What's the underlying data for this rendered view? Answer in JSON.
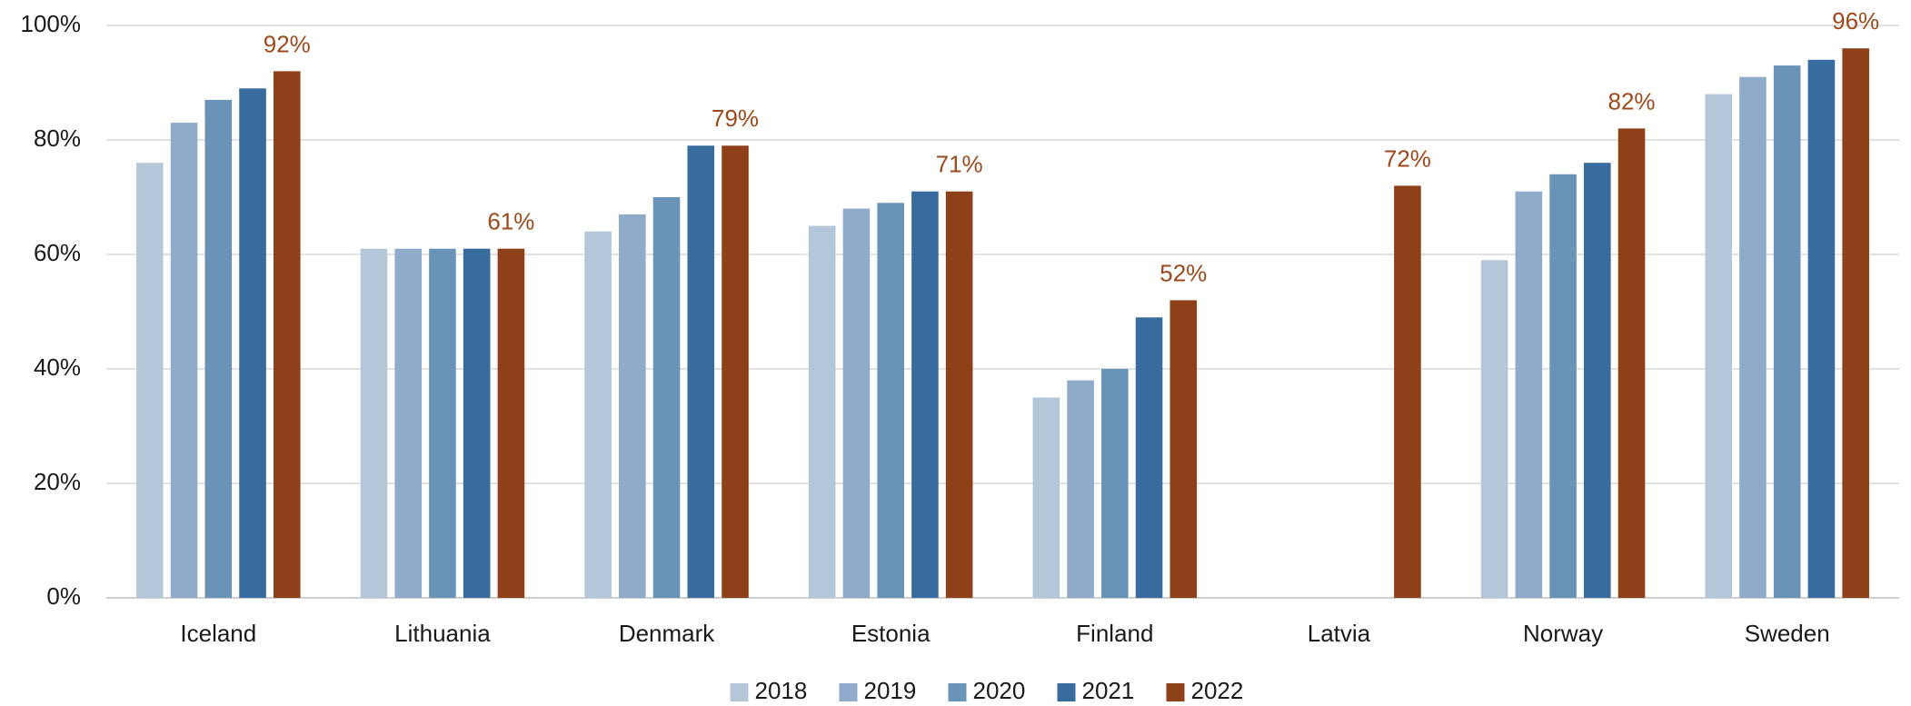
{
  "chart_data": {
    "type": "bar",
    "categories": [
      "Iceland",
      "Lithuania",
      "Denmark",
      "Estonia",
      "Finland",
      "Latvia",
      "Norway",
      "Sweden"
    ],
    "series": [
      {
        "name": "2018",
        "color": "#b4c7d9",
        "values": [
          76,
          61,
          64,
          65,
          35,
          null,
          59,
          88
        ]
      },
      {
        "name": "2019",
        "color": "#8fabc9",
        "values": [
          83,
          61,
          67,
          68,
          38,
          null,
          71,
          91
        ]
      },
      {
        "name": "2020",
        "color": "#6a93b8",
        "values": [
          87,
          61,
          70,
          69,
          40,
          null,
          74,
          93
        ]
      },
      {
        "name": "2021",
        "color": "#386b9e",
        "values": [
          89,
          61,
          79,
          71,
          49,
          null,
          76,
          94
        ]
      },
      {
        "name": "2022",
        "color": "#8e4119",
        "values": [
          92,
          61,
          79,
          71,
          52,
          72,
          82,
          96
        ],
        "value_labels": [
          "92%",
          "61%",
          "79%",
          "71%",
          "52%",
          "72%",
          "82%",
          "96%"
        ]
      }
    ],
    "ylim": [
      0,
      100
    ],
    "yticks": [
      {
        "value": 0,
        "label": "0%"
      },
      {
        "value": 20,
        "label": "20%"
      },
      {
        "value": 40,
        "label": "40%"
      },
      {
        "value": 60,
        "label": "60%"
      },
      {
        "value": 80,
        "label": "80%"
      },
      {
        "value": 100,
        "label": "100%"
      }
    ],
    "grid": true,
    "legend": "bottom"
  }
}
